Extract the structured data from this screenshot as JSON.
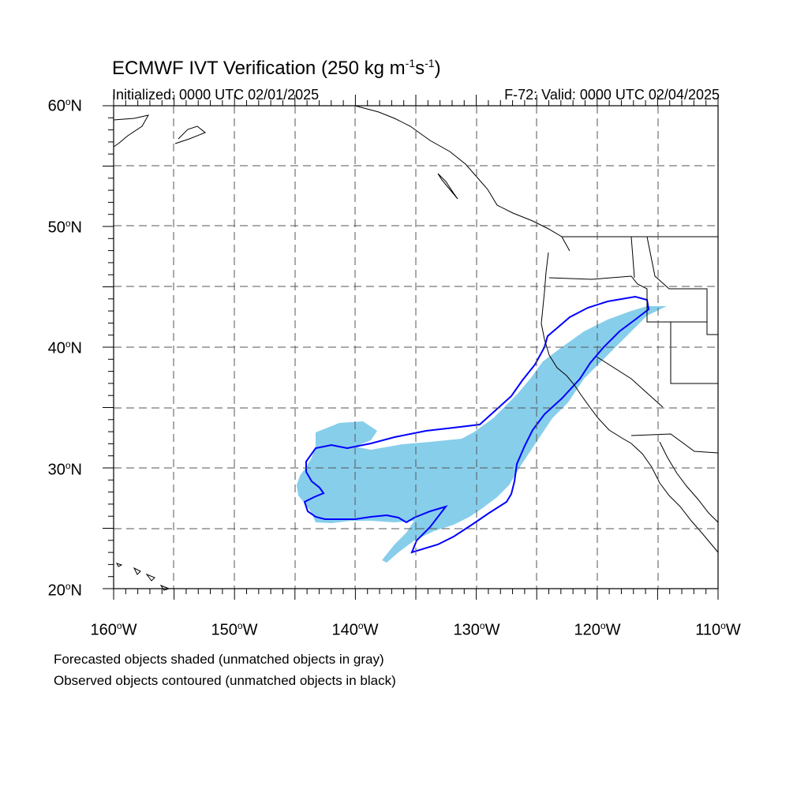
{
  "title_main": "ECMWF IVT Verification (250 kg m",
  "title_sup1": "-1",
  "title_mid": "s",
  "title_sup2": "-1",
  "title_end": ")",
  "initialized": "Initialized: 0000 UTC 02/01/2025",
  "valid": "F-72: Valid: 0000 UTC 02/04/2025",
  "lat_labels": [
    {
      "num": "60",
      "hemi": "N"
    },
    {
      "num": "50",
      "hemi": "N"
    },
    {
      "num": "40",
      "hemi": "N"
    },
    {
      "num": "30",
      "hemi": "N"
    },
    {
      "num": "20",
      "hemi": "N"
    }
  ],
  "lon_labels": [
    {
      "num": "160",
      "hemi": "W"
    },
    {
      "num": "150",
      "hemi": "W"
    },
    {
      "num": "140",
      "hemi": "W"
    },
    {
      "num": "130",
      "hemi": "W"
    },
    {
      "num": "120",
      "hemi": "W"
    },
    {
      "num": "110",
      "hemi": "W"
    }
  ],
  "note_forecast": "Forecasted objects shaded (unmatched objects in gray)",
  "note_observed": "Observed objects contoured (unmatched objects in black)",
  "colors": {
    "forecast_fill": "#87CEEB",
    "observed_contour": "#0000FF",
    "coastline": "#000000",
    "grid": "#555555"
  },
  "map_extent": {
    "lon_min": -160,
    "lon_max": -110,
    "lat_min": 20,
    "lat_max": 60
  }
}
